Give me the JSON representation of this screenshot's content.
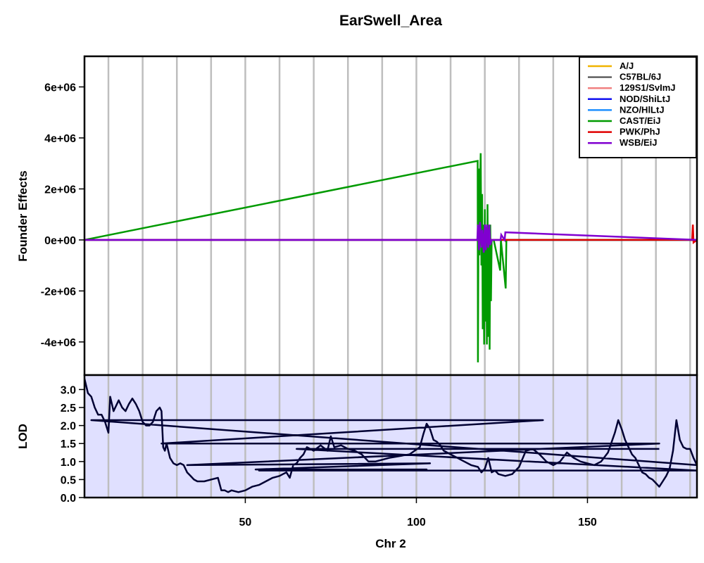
{
  "chart_data": [
    {
      "type": "line",
      "title": "EarSwell_Area",
      "ylabel": "Founder Effects",
      "xlim": [
        3,
        182
      ],
      "ylim": [
        -5300000.0,
        7200000.0
      ],
      "yticks": [
        {
          "v": 6000000.0,
          "label": "6e+06"
        },
        {
          "v": 4000000.0,
          "label": "4e+06"
        },
        {
          "v": 2000000.0,
          "label": "2e+06"
        },
        {
          "v": 0,
          "label": "0e+00"
        },
        {
          "v": -2000000.0,
          "label": "-2e+06"
        },
        {
          "v": -4000000.0,
          "label": "-4e+06"
        }
      ],
      "grid": true,
      "grid_x": [
        10,
        20,
        30,
        40,
        50,
        60,
        70,
        80,
        90,
        100,
        110,
        120,
        130,
        140,
        150,
        160,
        170,
        180
      ],
      "legend_position": "top-right",
      "series": [
        {
          "name": "A/J",
          "color": "#F0B400",
          "x": [
            3,
            182
          ],
          "y": [
            0,
            0
          ]
        },
        {
          "name": "C57BL/6J",
          "color": "#606060",
          "x": [
            3,
            182
          ],
          "y": [
            0,
            0
          ]
        },
        {
          "name": "129S1/SvImJ",
          "color": "#F08080",
          "x": [
            3,
            182
          ],
          "y": [
            0,
            0
          ]
        },
        {
          "name": "NOD/ShiLtJ",
          "color": "#1010F0",
          "x": [
            3,
            182
          ],
          "y": [
            0,
            0
          ]
        },
        {
          "name": "NZO/HlLtJ",
          "color": "#1E90FF",
          "x": [
            3,
            182
          ],
          "y": [
            0,
            0
          ]
        },
        {
          "name": "CAST/EiJ",
          "color": "#009A00",
          "x": [
            3,
            117.9,
            118.0,
            118.2,
            118.4,
            118.6,
            118.8,
            119.0,
            119.2,
            119.4,
            119.6,
            119.8,
            120.0,
            120.2,
            120.4,
            120.6,
            120.8,
            121.0,
            121.2,
            121.4,
            121.6,
            121.8,
            122.0,
            122.2,
            122.4,
            122.6,
            124.5,
            124.7,
            126.1,
            126.3,
            182
          ],
          "y": [
            0,
            3100000.0,
            -4800000.0,
            2800000.0,
            -600000.0,
            2200000.0,
            3400000.0,
            -1000000.0,
            1800000.0,
            -3500000.0,
            600000.0,
            -4100000.0,
            1200000.0,
            -3200000.0,
            500000.0,
            -4100000.0,
            1400000.0,
            -3800000.0,
            400000.0,
            -4300000.0,
            600000.0,
            -2400000.0,
            0,
            0,
            0,
            0,
            -1200000.0,
            0,
            -1900000.0,
            0,
            0
          ]
        },
        {
          "name": "PWK/PhJ",
          "color": "#E00000",
          "x": [
            3,
            180.6,
            180.8,
            181.0,
            182
          ],
          "y": [
            0,
            0,
            600000.0,
            -100000.0,
            0
          ]
        },
        {
          "name": "WSB/EiJ",
          "color": "#8000D0",
          "x": [
            3,
            117.8,
            118.0,
            118.3,
            118.6,
            119.0,
            119.3,
            119.7,
            120.0,
            120.3,
            120.6,
            121.0,
            121.3,
            121.6,
            122.0,
            124.6,
            124.8,
            125.8,
            126.0,
            182
          ],
          "y": [
            0,
            0,
            600000.0,
            -400000.0,
            700000.0,
            -300000.0,
            400000.0,
            -500000.0,
            600000.0,
            -400000.0,
            600000.0,
            -300000.0,
            600000.0,
            -200000.0,
            0,
            0,
            200000.0,
            0,
            300000.0,
            0
          ]
        }
      ]
    },
    {
      "type": "line",
      "xlabel": "Chr 2",
      "ylabel": "LOD",
      "xlim": [
        3,
        182
      ],
      "ylim": [
        0,
        3.4
      ],
      "xticks": [
        50,
        100,
        150
      ],
      "yticks": [
        {
          "v": 0.0,
          "label": "0.0"
        },
        {
          "v": 0.5,
          "label": "0.5"
        },
        {
          "v": 1.0,
          "label": "1.0"
        },
        {
          "v": 1.5,
          "label": "1.5"
        },
        {
          "v": 2.0,
          "label": "2.0"
        },
        {
          "v": 2.5,
          "label": "2.5"
        },
        {
          "v": 3.0,
          "label": "3.0"
        }
      ],
      "grid": true,
      "background": "#E0E0FF",
      "series": [
        {
          "color": "#000033",
          "x": [
            3,
            4,
            5,
            6,
            7,
            8,
            9,
            10,
            10.5,
            11,
            11.5,
            12,
            13,
            14,
            15,
            16,
            17,
            18,
            19,
            20,
            21,
            22,
            23,
            24,
            25,
            25.5,
            26,
            26.5,
            27,
            28,
            29,
            30,
            31,
            32,
            33,
            34,
            35,
            36,
            37,
            38,
            40,
            42,
            43,
            44,
            45,
            46,
            48,
            50,
            52,
            54,
            56,
            58,
            60,
            61,
            62,
            63,
            64,
            65,
            66,
            67,
            68,
            70,
            72,
            74,
            75,
            76,
            78,
            80,
            82,
            84,
            86,
            88,
            90,
            92,
            95,
            98,
            101,
            102,
            103,
            104,
            105,
            106,
            107,
            108,
            110,
            112,
            114,
            116,
            118,
            119,
            120,
            121,
            122,
            123,
            124,
            126,
            128,
            130,
            132,
            134,
            136,
            138,
            140,
            142,
            144,
            146,
            148,
            150,
            152,
            154,
            156,
            158,
            159,
            160,
            161,
            162,
            163,
            164,
            165,
            166,
            167,
            168,
            169,
            170,
            171,
            172,
            173,
            174,
            175,
            176,
            177,
            178,
            179,
            180,
            181,
            182,
            5,
            137,
            25.5,
            171,
            33,
            104,
            53,
            103,
            54,
            98,
            136,
            182,
            65,
            171
          ],
          "y": [
            3.3,
            2.9,
            2.8,
            2.5,
            2.3,
            2.3,
            2.1,
            1.8,
            2.8,
            2.6,
            2.4,
            2.5,
            2.7,
            2.5,
            2.4,
            2.6,
            2.75,
            2.6,
            2.4,
            2.1,
            2.0,
            2.0,
            2.1,
            2.4,
            2.5,
            2.4,
            1.4,
            1.3,
            1.5,
            1.1,
            0.95,
            0.9,
            0.95,
            0.9,
            0.7,
            0.6,
            0.5,
            0.45,
            0.45,
            0.45,
            0.5,
            0.55,
            0.2,
            0.2,
            0.15,
            0.2,
            0.15,
            0.2,
            0.3,
            0.35,
            0.45,
            0.55,
            0.6,
            0.65,
            0.7,
            0.55,
            0.9,
            0.95,
            1.1,
            1.2,
            1.4,
            1.3,
            1.45,
            1.3,
            1.7,
            1.4,
            1.45,
            1.35,
            1.3,
            1.2,
            1.0,
            1.0,
            1.05,
            1.1,
            1.15,
            1.2,
            1.4,
            1.75,
            2.05,
            1.9,
            1.6,
            1.55,
            1.45,
            1.3,
            1.2,
            1.1,
            1.0,
            0.9,
            0.85,
            0.7,
            0.8,
            1.1,
            0.7,
            0.75,
            0.65,
            0.6,
            0.65,
            0.85,
            1.3,
            1.35,
            1.2,
            1.0,
            0.9,
            1.0,
            1.25,
            1.1,
            1.0,
            0.95,
            0.9,
            1.0,
            1.25,
            1.8,
            2.15,
            1.9,
            1.6,
            1.4,
            1.2,
            1.1,
            0.9,
            0.7,
            0.65,
            0.55,
            0.5,
            0.4,
            0.3,
            0.45,
            0.6,
            0.8,
            1.3,
            2.15,
            1.6,
            1.4,
            1.35,
            1.35,
            1.1,
            0.9,
            2.15,
            2.15,
            1.5,
            1.5,
            0.9,
            0.95,
            0.78,
            0.78,
            0.75,
            0.75,
            0.75,
            0.75,
            1.35,
            1.35
          ]
        }
      ]
    }
  ],
  "legend": {
    "items": [
      {
        "name": "A/J",
        "color": "#F0B400"
      },
      {
        "name": "C57BL/6J",
        "color": "#606060"
      },
      {
        "name": "129S1/SvImJ",
        "color": "#F08080"
      },
      {
        "name": "NOD/ShiLtJ",
        "color": "#1010F0"
      },
      {
        "name": "NZO/HlLtJ",
        "color": "#1E90FF"
      },
      {
        "name": "CAST/EiJ",
        "color": "#009A00"
      },
      {
        "name": "PWK/PhJ",
        "color": "#E00000"
      },
      {
        "name": "WSB/EiJ",
        "color": "#8000D0"
      }
    ]
  }
}
